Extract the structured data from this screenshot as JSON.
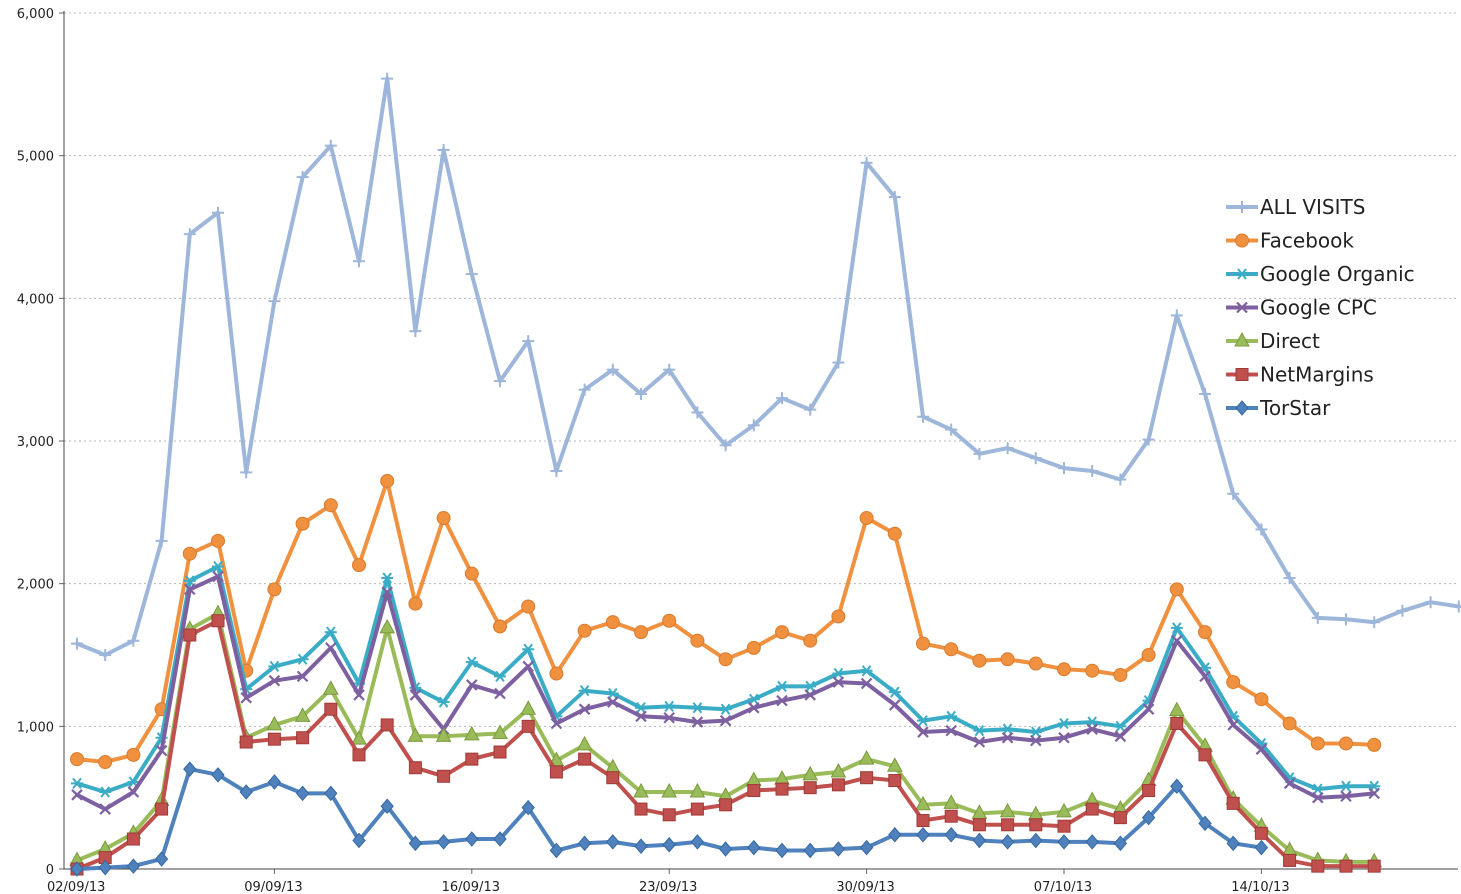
{
  "chart_data": {
    "type": "line",
    "title": "",
    "xlabel": "",
    "ylabel": "",
    "ylim": [
      0,
      6000
    ],
    "y_ticks": [
      "0",
      "1,000",
      "2,000",
      "3,000",
      "4,000",
      "5,000",
      "6,000"
    ],
    "x_ticks": [
      "02/09/13",
      "09/09/13",
      "16/09/13",
      "23/09/13",
      "30/09/13",
      "07/10/13",
      "14/10/13"
    ],
    "x_tick_day_index": [
      0,
      7,
      14,
      21,
      28,
      35,
      42
    ],
    "grid": "horizontal dotted",
    "legend_position": "right",
    "series": [
      {
        "name": "ALL VISITS",
        "color": "#9db6d9",
        "marker": "plus",
        "values": [
          1580,
          1500,
          1600,
          2300,
          4450,
          4600,
          2780,
          3980,
          4850,
          5070,
          4260,
          5540,
          3770,
          5040,
          4170,
          3420,
          3700,
          2790,
          3360,
          3500,
          3330,
          3500,
          3200,
          2970,
          3110,
          3300,
          3220,
          3550,
          4950,
          4710,
          3170,
          3080,
          2910,
          2950,
          2880,
          2810,
          2790,
          2730,
          3010,
          3880,
          3330,
          2630,
          2380,
          2040,
          1760,
          1750,
          1730,
          1810,
          1870,
          1840
        ]
      },
      {
        "name": "Facebook",
        "color": "#f0913f",
        "marker": "circle",
        "values": [
          770,
          750,
          800,
          1120,
          2210,
          2300,
          1390,
          1960,
          2420,
          2550,
          2130,
          2720,
          1860,
          2460,
          2070,
          1700,
          1840,
          1370,
          1670,
          1730,
          1660,
          1740,
          1600,
          1470,
          1550,
          1660,
          1600,
          1770,
          2460,
          2350,
          1580,
          1540,
          1460,
          1470,
          1440,
          1400,
          1390,
          1360,
          1500,
          1960,
          1660,
          1310,
          1190,
          1020,
          880,
          880,
          870
        ]
      },
      {
        "name": "Google Organic",
        "color": "#3bacc6",
        "marker": "star",
        "values": [
          600,
          540,
          610,
          920,
          2020,
          2120,
          1260,
          1420,
          1470,
          1660,
          1300,
          2040,
          1270,
          1170,
          1450,
          1350,
          1540,
          1070,
          1250,
          1230,
          1130,
          1140,
          1130,
          1120,
          1190,
          1280,
          1280,
          1370,
          1390,
          1240,
          1040,
          1070,
          970,
          980,
          960,
          1020,
          1030,
          1000,
          1180,
          1690,
          1410,
          1070,
          880,
          640,
          560,
          580,
          580
        ]
      },
      {
        "name": "Google CPC",
        "color": "#7d60a0",
        "marker": "x",
        "values": [
          520,
          420,
          540,
          830,
          1960,
          2050,
          1200,
          1320,
          1350,
          1550,
          1220,
          1940,
          1220,
          980,
          1290,
          1230,
          1420,
          1020,
          1120,
          1170,
          1070,
          1060,
          1030,
          1040,
          1130,
          1180,
          1220,
          1310,
          1300,
          1150,
          960,
          970,
          890,
          920,
          900,
          920,
          980,
          930,
          1120,
          1600,
          1350,
          1010,
          840,
          600,
          500,
          510,
          530
        ]
      },
      {
        "name": "Direct",
        "color": "#9abb59",
        "marker": "triangle",
        "values": [
          60,
          140,
          250,
          480,
          1680,
          1790,
          920,
          1010,
          1070,
          1260,
          910,
          1690,
          930,
          930,
          940,
          950,
          1120,
          760,
          870,
          710,
          540,
          540,
          540,
          510,
          620,
          630,
          660,
          680,
          770,
          720,
          450,
          460,
          390,
          400,
          380,
          400,
          480,
          420,
          620,
          1110,
          860,
          490,
          300,
          130,
          60,
          50,
          50
        ]
      },
      {
        "name": "NetMargins",
        "color": "#c0504d",
        "marker": "square",
        "values": [
          0,
          80,
          210,
          420,
          1640,
          1740,
          890,
          910,
          920,
          1120,
          800,
          1010,
          710,
          650,
          770,
          820,
          1000,
          680,
          770,
          640,
          420,
          380,
          420,
          450,
          550,
          560,
          570,
          590,
          640,
          620,
          340,
          370,
          310,
          310,
          310,
          300,
          420,
          360,
          550,
          1020,
          800,
          460,
          250,
          60,
          20,
          20,
          20
        ]
      },
      {
        "name": "TorStar",
        "color": "#4f81bd",
        "marker": "diamond",
        "values": [
          0,
          10,
          20,
          70,
          700,
          660,
          540,
          610,
          530,
          530,
          200,
          440,
          180,
          190,
          210,
          210,
          430,
          130,
          180,
          190,
          160,
          170,
          190,
          140,
          150,
          130,
          130,
          140,
          150,
          240,
          240,
          240,
          200,
          190,
          200,
          190,
          190,
          180,
          360,
          580,
          320,
          180,
          150
        ]
      }
    ]
  }
}
